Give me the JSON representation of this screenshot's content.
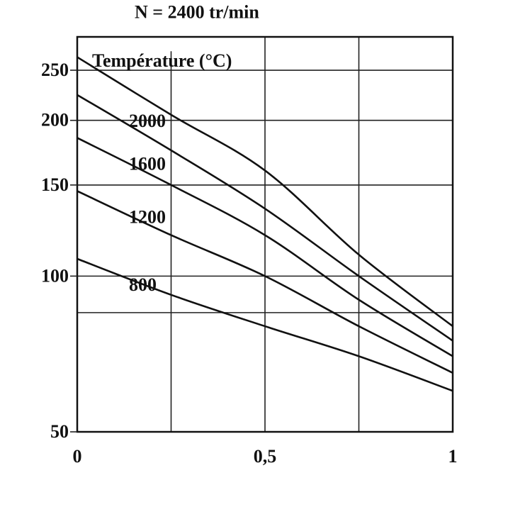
{
  "chart_data": {
    "type": "line",
    "title": "",
    "ylabel": "Température (°C)",
    "xlabel": "",
    "xlim": [
      0,
      1
    ],
    "ylim": [
      50,
      290
    ],
    "x_ticks": [
      0,
      0.5,
      1
    ],
    "x_tick_labels": [
      "0",
      "0,5",
      "1"
    ],
    "y_ticks": [
      50,
      100,
      150,
      200,
      250
    ],
    "y_tick_labels": [
      "50",
      "100",
      "150",
      "200",
      "250"
    ],
    "grid": true,
    "x": [
      0,
      0.25,
      0.5,
      0.75,
      1
    ],
    "series": [
      {
        "name": "N = 2400 tr/min",
        "values": [
          265,
          205,
          160,
          110,
          80
        ]
      },
      {
        "name": "2000",
        "values": [
          224,
          175,
          135,
          100,
          75
        ]
      },
      {
        "name": "1600",
        "values": [
          185,
          150,
          120,
          90,
          70
        ]
      },
      {
        "name": "1200",
        "values": [
          146,
          120,
          100,
          80,
          65
        ]
      },
      {
        "name": "800",
        "values": [
          108,
          92,
          80,
          70,
          60
        ]
      }
    ]
  }
}
